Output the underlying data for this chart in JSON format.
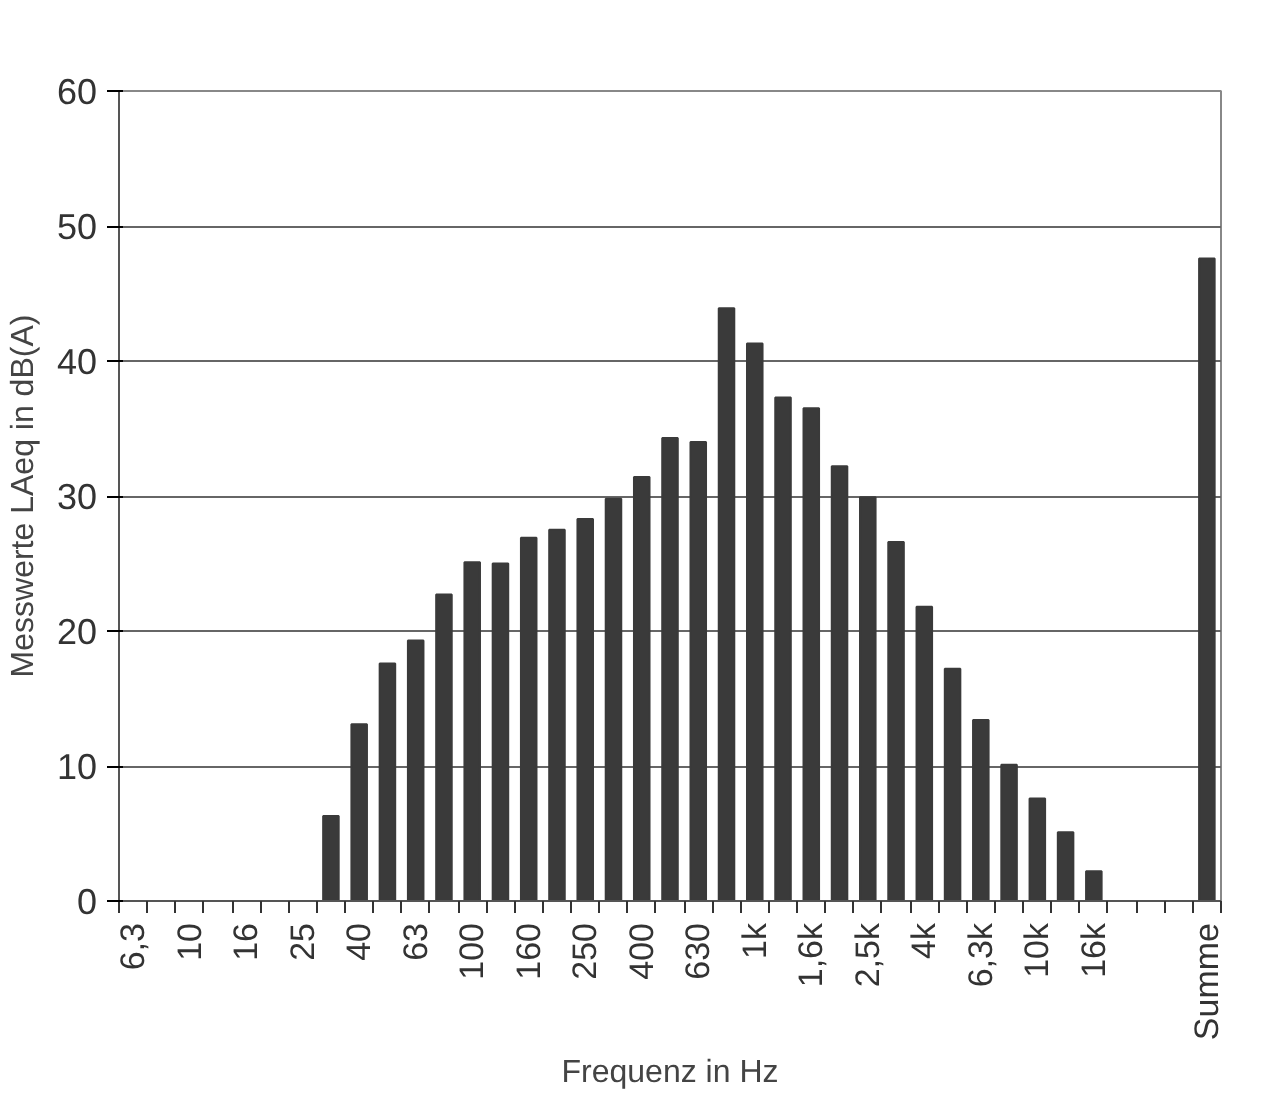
{
  "chart_data": {
    "type": "bar",
    "xlabel": "Frequenz in Hz",
    "ylabel": "Messwerte LAeq in dB(A)",
    "categories": [
      "6,3",
      null,
      "10",
      null,
      "16",
      null,
      "25",
      null,
      "40",
      null,
      "63",
      null,
      "100",
      null,
      "160",
      null,
      "250",
      null,
      "400",
      null,
      "630",
      null,
      "1k",
      null,
      "1,6k",
      null,
      "2,5k",
      null,
      "4k",
      null,
      "6,3k",
      null,
      "10k",
      null,
      "16k",
      null,
      null,
      null,
      "Summe"
    ],
    "values": [
      null,
      null,
      null,
      null,
      null,
      null,
      null,
      6.3,
      13.1,
      17.6,
      19.3,
      22.7,
      25.1,
      25.0,
      26.9,
      27.5,
      28.3,
      29.8,
      31.4,
      34.3,
      34.0,
      43.9,
      41.3,
      37.3,
      36.5,
      32.2,
      29.9,
      26.6,
      21.8,
      17.2,
      13.4,
      10.1,
      7.6,
      5.1,
      2.2,
      null,
      null,
      null,
      47.6
    ],
    "color": "#3a3a3a",
    "ylim": [
      0,
      60
    ],
    "yticks": [
      0,
      10,
      20,
      30,
      40,
      50,
      60
    ],
    "grid": "y"
  }
}
